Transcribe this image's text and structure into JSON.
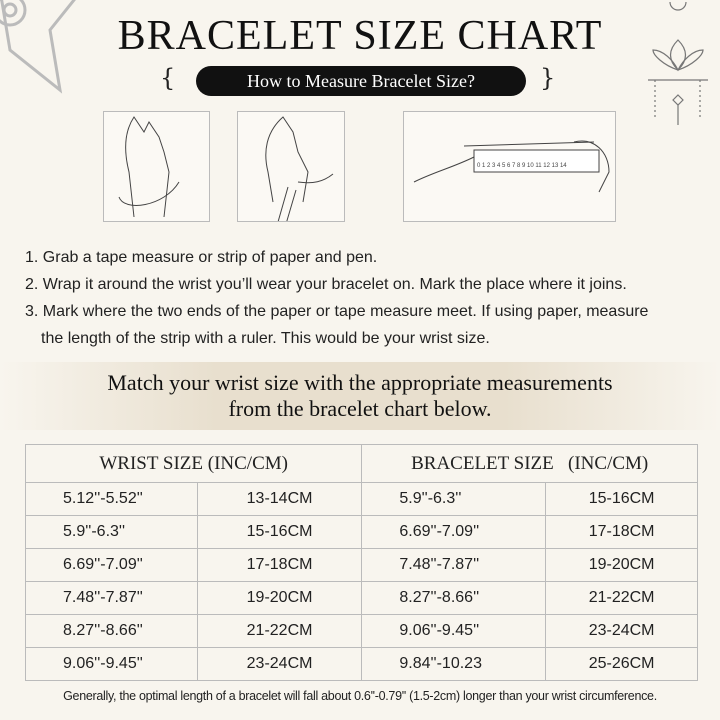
{
  "title": "BRACELET SIZE CHART",
  "subtitle": "How to Measure Bracelet Size?",
  "ruler_numbers": "0 1 2 3 4 5 6 7 8 9 10 11 12 13 14",
  "steps": [
    "1. Grab a tape measure or strip of paper and pen.",
    "2. Wrap it around the wrist you’ll wear your bracelet on. Mark the place where it joins.",
    "3. Mark where the two ends of the paper or tape measure meet. If using paper, measure",
    "the length of the strip with a ruler. This would be your wrist size."
  ],
  "band": [
    "Match your wrist size with the appropriate measurements",
    "from the bracelet chart below."
  ],
  "table": {
    "headers": [
      "WRIST SIZE (INC/CM)",
      "BRACELET SIZE   (INC/CM)"
    ],
    "rows": [
      [
        "5.12''-5.52''",
        "13-14CM",
        "5.9''-6.3''",
        "15-16CM"
      ],
      [
        "5.9''-6.3''",
        "15-16CM",
        "6.69''-7.09''",
        "17-18CM"
      ],
      [
        "6.69''-7.09''",
        "17-18CM",
        "7.48''-7.87''",
        "19-20CM"
      ],
      [
        "7.48''-7.87''",
        "19-20CM",
        "8.27''-8.66''",
        "21-22CM"
      ],
      [
        "8.27''-8.66''",
        "21-22CM",
        "9.06''-9.45''",
        "23-24CM"
      ],
      [
        "9.06''-9.45''",
        "23-24CM",
        "9.84''-10.23",
        "25-26CM"
      ]
    ]
  },
  "footnote": "Generally, the optimal length of a bracelet will fall about 0.6''-0.79'' (1.5-2cm) longer than your wrist circumference."
}
